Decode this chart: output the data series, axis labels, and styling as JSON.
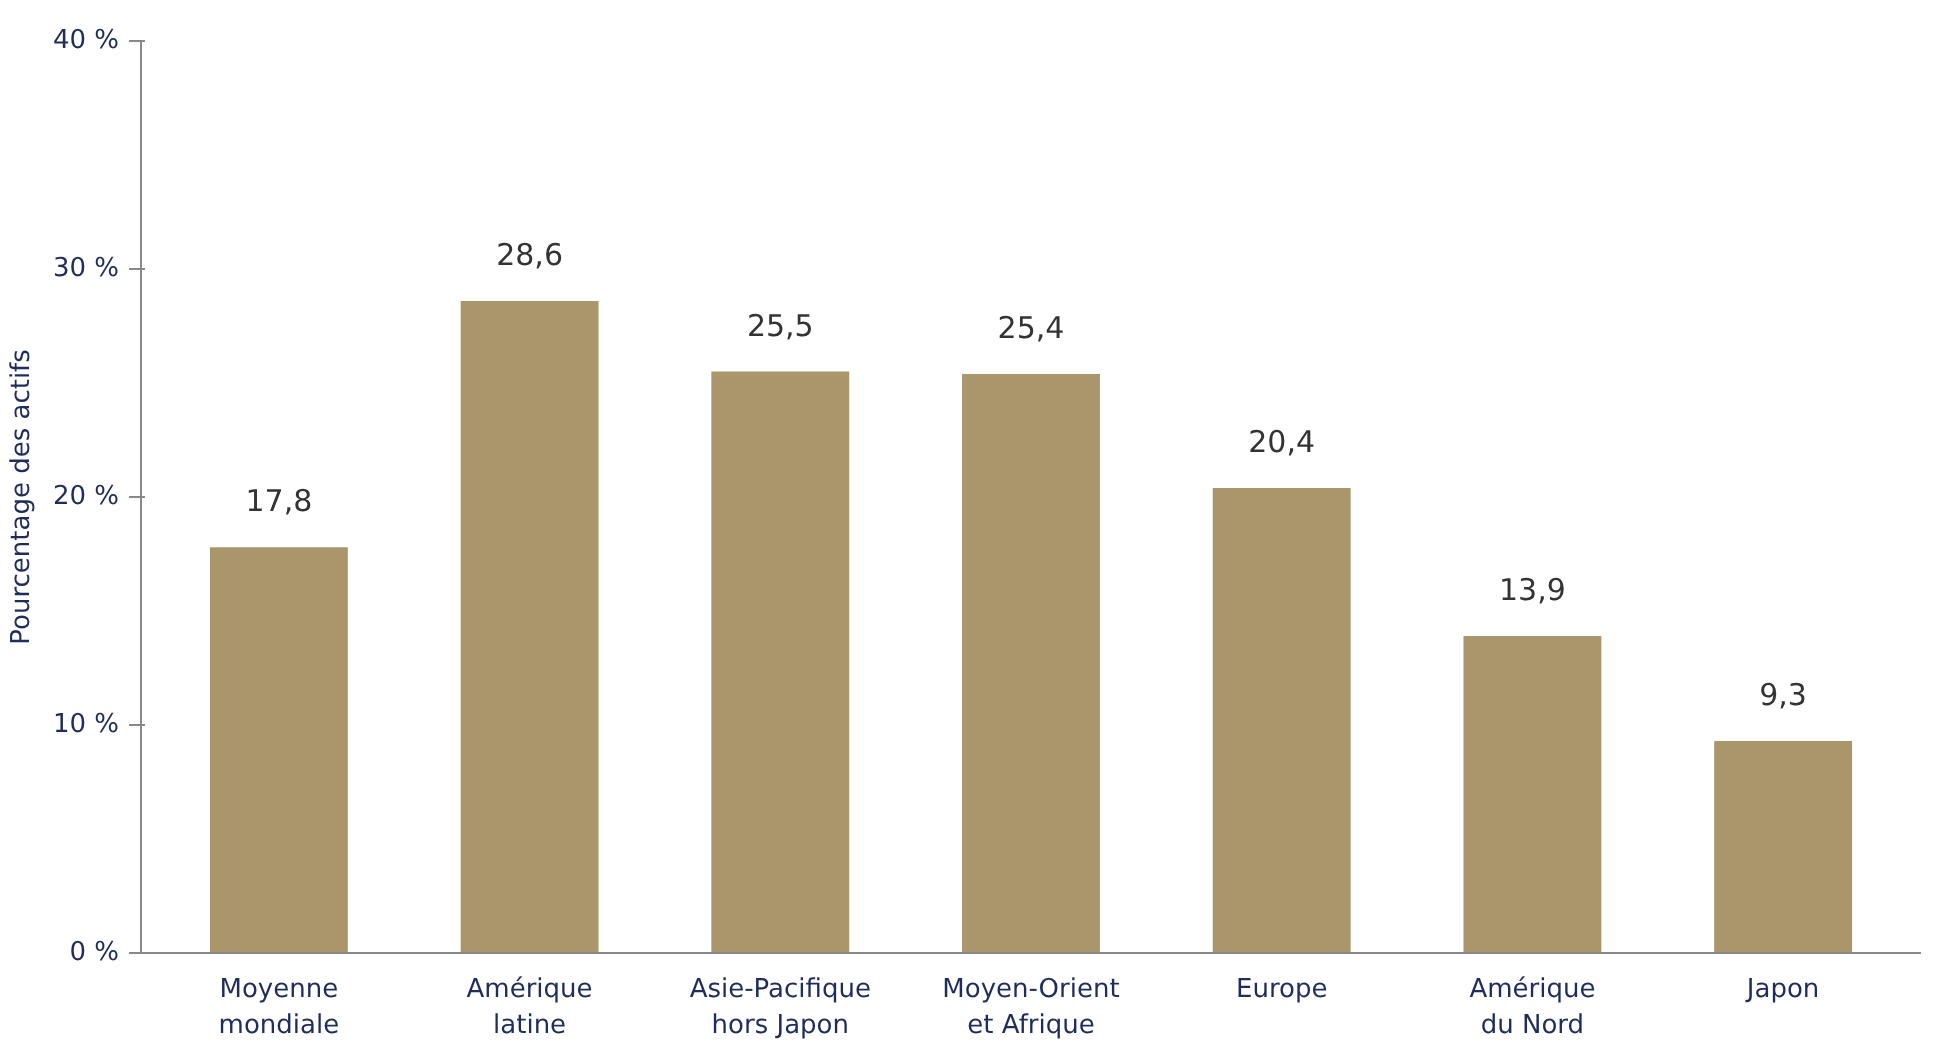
{
  "chart_data": {
    "type": "bar",
    "ylabel": "Pourcentage des actifs",
    "categories": [
      "Moyenne\nmondiale",
      "Amérique\nlatine",
      "Asie-Pacifique\nhors Japon",
      "Moyen-Orient\net Afrique",
      "Europe",
      "Amérique\ndu Nord",
      "Japon"
    ],
    "values": [
      17.8,
      28.6,
      25.5,
      25.4,
      20.4,
      13.9,
      9.3
    ],
    "value_labels": [
      "17,8",
      "28,6",
      "25,5",
      "25,4",
      "20,4",
      "13,9",
      "9,3"
    ],
    "color": "#a9976b",
    "ylim": [
      0,
      40
    ],
    "yticks": [
      {
        "value": 0,
        "label": "0 %"
      },
      {
        "value": 10,
        "label": "10 %"
      },
      {
        "value": 20,
        "label": "20 %"
      },
      {
        "value": 30,
        "label": "30 %"
      },
      {
        "value": 40,
        "label": "40 %"
      }
    ],
    "grid": false
  }
}
